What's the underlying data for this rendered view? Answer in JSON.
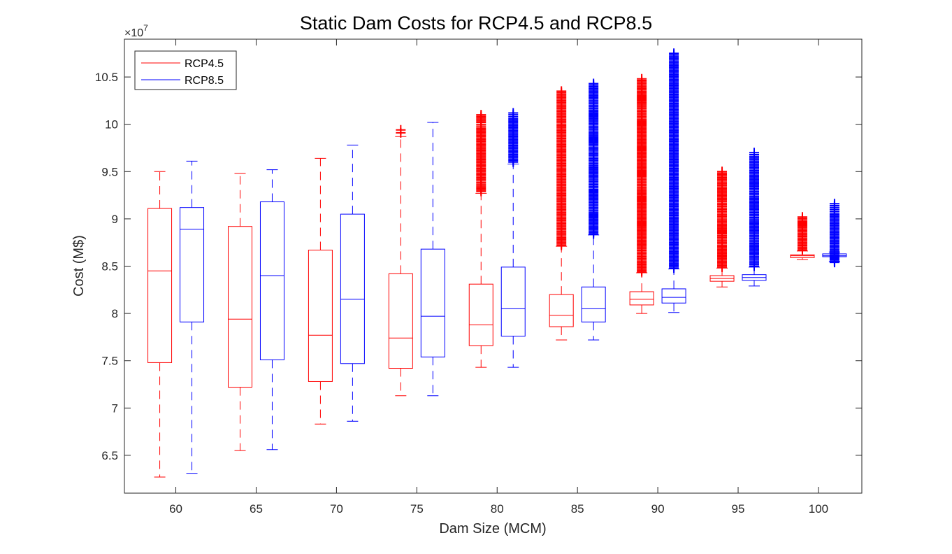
{
  "chart_data": {
    "type": "box",
    "title": "Static Dam Costs for RCP4.5 and RCP8.5",
    "xlabel": "Dam Size (MCM)",
    "ylabel": "Cost (M$)",
    "y_exponent_label": "×10",
    "y_exponent_power": "7",
    "y_multiplier": 10000000,
    "ylim": [
      6.1,
      10.9
    ],
    "yticks": [
      6.5,
      7,
      7.5,
      8,
      8.5,
      9,
      9.5,
      10,
      10.5
    ],
    "ytick_labels": [
      "6.5",
      "7",
      "7.5",
      "8",
      "8.5",
      "9",
      "9.5",
      "10",
      "10.5"
    ],
    "xlim": [
      56.8,
      102.7
    ],
    "xticks": [
      60,
      65,
      70,
      75,
      80,
      85,
      90,
      95,
      100
    ],
    "xtick_labels": [
      "60",
      "65",
      "70",
      "75",
      "80",
      "85",
      "90",
      "95",
      "100"
    ],
    "legend_position": "top-left",
    "grid": false,
    "series": [
      {
        "name": "RCP4.5",
        "color": "#ff0000",
        "boxes": [
          {
            "x": 59,
            "whisker_low": 6.27,
            "q1": 7.48,
            "median": 8.45,
            "q3": 9.11,
            "whisker_high": 9.5,
            "outliers": []
          },
          {
            "x": 64,
            "whisker_low": 6.55,
            "q1": 7.22,
            "median": 7.94,
            "q3": 8.92,
            "whisker_high": 9.48,
            "outliers": []
          },
          {
            "x": 69,
            "whisker_low": 6.83,
            "q1": 7.28,
            "median": 7.77,
            "q3": 8.67,
            "whisker_high": 9.64,
            "outliers": []
          },
          {
            "x": 74,
            "whisker_low": 7.13,
            "q1": 7.42,
            "median": 7.74,
            "q3": 8.42,
            "whisker_high": 9.87,
            "outliers": [
              9.91,
              9.94
            ]
          },
          {
            "x": 79,
            "whisker_low": 7.43,
            "q1": 7.66,
            "median": 7.88,
            "q3": 8.31,
            "whisker_high": 9.27,
            "outliers": [
              9.29,
              9.35,
              9.42,
              9.5,
              9.58,
              9.66,
              9.74,
              9.82,
              9.9,
              9.96,
              10.02,
              10.1
            ]
          },
          {
            "x": 84,
            "whisker_low": 7.72,
            "q1": 7.86,
            "median": 7.98,
            "q3": 8.2,
            "whisker_high": 8.71,
            "outliers": [
              8.72,
              8.8,
              8.9,
              9.0,
              9.1,
              9.2,
              9.3,
              9.4,
              9.5,
              9.6,
              9.7,
              9.8,
              9.9,
              10.0,
              10.1,
              10.2,
              10.25,
              10.35
            ]
          },
          {
            "x": 89,
            "whisker_low": 8.0,
            "q1": 8.09,
            "median": 8.15,
            "q3": 8.23,
            "whisker_high": 8.43,
            "outliers": [
              8.44,
              8.55,
              8.7,
              8.85,
              9.0,
              9.15,
              9.3,
              9.45,
              9.6,
              9.75,
              9.9,
              10.05,
              10.2,
              10.35,
              10.48
            ]
          },
          {
            "x": 94,
            "whisker_low": 8.28,
            "q1": 8.34,
            "median": 8.37,
            "q3": 8.4,
            "whisker_high": 8.48,
            "outliers": [
              8.49,
              8.6,
              8.72,
              8.84,
              8.96,
              9.08,
              9.2,
              9.32,
              9.42,
              9.5
            ]
          },
          {
            "x": 99,
            "whisker_low": 8.57,
            "q1": 8.59,
            "median": 8.61,
            "q3": 8.62,
            "whisker_high": 8.66,
            "outliers": [
              8.67,
              8.75,
              8.83,
              8.91,
              8.97,
              9.02
            ]
          }
        ]
      },
      {
        "name": "RCP8.5",
        "color": "#0000ff",
        "boxes": [
          {
            "x": 61,
            "whisker_low": 6.31,
            "q1": 7.91,
            "median": 8.89,
            "q3": 9.12,
            "whisker_high": 9.61,
            "outliers": []
          },
          {
            "x": 66,
            "whisker_low": 6.56,
            "q1": 7.51,
            "median": 8.4,
            "q3": 9.18,
            "whisker_high": 9.52,
            "outliers": []
          },
          {
            "x": 71,
            "whisker_low": 6.86,
            "q1": 7.47,
            "median": 8.15,
            "q3": 9.05,
            "whisker_high": 9.78,
            "outliers": []
          },
          {
            "x": 76,
            "whisker_low": 7.13,
            "q1": 7.54,
            "median": 7.97,
            "q3": 8.68,
            "whisker_high": 10.02,
            "outliers": []
          },
          {
            "x": 81,
            "whisker_low": 7.43,
            "q1": 7.76,
            "median": 8.05,
            "q3": 8.49,
            "whisker_high": 9.58,
            "outliers": [
              9.6,
              9.68,
              9.76,
              9.84,
              9.92,
              10.0,
              10.06,
              10.12
            ]
          },
          {
            "x": 86,
            "whisker_low": 7.72,
            "q1": 7.91,
            "median": 8.05,
            "q3": 8.28,
            "whisker_high": 8.83,
            "outliers": [
              8.84,
              8.95,
              9.07,
              9.19,
              9.31,
              9.43,
              9.55,
              9.67,
              9.79,
              9.91,
              10.03,
              10.15,
              10.27,
              10.38,
              10.43
            ]
          },
          {
            "x": 91,
            "whisker_low": 8.01,
            "q1": 8.11,
            "median": 8.17,
            "q3": 8.26,
            "whisker_high": 8.47,
            "outliers": [
              8.48,
              8.62,
              8.78,
              8.94,
              9.1,
              9.26,
              9.42,
              9.58,
              9.74,
              9.9,
              10.06,
              10.22,
              10.38,
              10.54,
              10.65,
              10.75
            ]
          },
          {
            "x": 96,
            "whisker_low": 8.29,
            "q1": 8.35,
            "median": 8.38,
            "q3": 8.41,
            "whisker_high": 8.49,
            "outliers": [
              8.5,
              8.62,
              8.74,
              8.86,
              8.98,
              9.1,
              9.22,
              9.34,
              9.46,
              9.56,
              9.66,
              9.7
            ]
          },
          {
            "x": 101,
            "whisker_low": 8.55,
            "q1": 8.6,
            "median": 8.61,
            "q3": 8.63,
            "whisker_high": 8.65,
            "outliers": [
              8.54,
              8.66,
              8.74,
              8.82,
              8.9,
              8.98,
              9.06,
              9.12,
              9.16
            ]
          }
        ]
      }
    ]
  }
}
